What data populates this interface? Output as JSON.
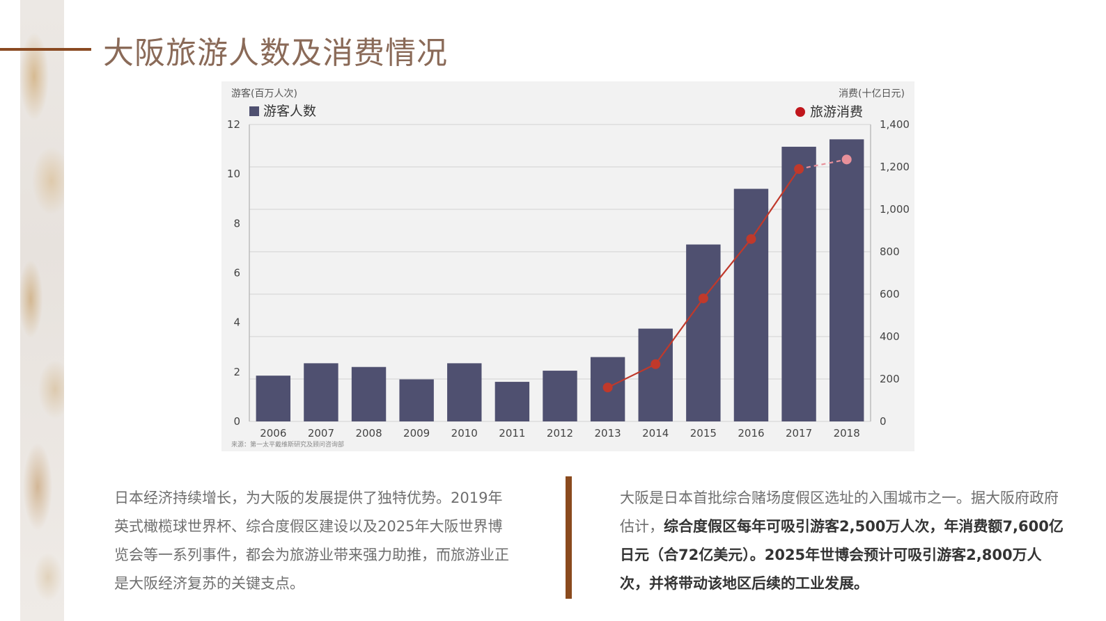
{
  "page": {
    "title": "大阪旅游人数及消费情况"
  },
  "colors": {
    "accent": "#8a4a22",
    "bar": "#4f5070",
    "line": "#c0392b",
    "estimate_point": "#e8909a"
  },
  "chart_data": {
    "type": "bar",
    "left_axis_title": "游客(百万人次)",
    "right_axis_title": "消费(十亿日元)",
    "categories": [
      "2006",
      "2007",
      "2008",
      "2009",
      "2010",
      "2011",
      "2012",
      "2013",
      "2014",
      "2015",
      "2016",
      "2017",
      "2018"
    ],
    "series": [
      {
        "name": "游客人数",
        "type": "bar",
        "axis": "left",
        "values": [
          1.85,
          2.35,
          2.2,
          1.7,
          2.35,
          1.6,
          2.05,
          2.6,
          3.75,
          7.15,
          9.4,
          11.1,
          11.4
        ]
      },
      {
        "name": "旅游消费",
        "type": "line",
        "axis": "right",
        "values": [
          null,
          null,
          null,
          null,
          null,
          null,
          null,
          160,
          270,
          580,
          860,
          1190,
          1235
        ],
        "estimate_from_index": 12
      }
    ],
    "left_ylim": [
      0,
      12
    ],
    "right_ylim": [
      0,
      1400
    ],
    "left_ticks": [
      "0",
      "2",
      "4",
      "6",
      "8",
      "10",
      "12"
    ],
    "right_ticks": [
      "0",
      "200",
      "400",
      "600",
      "800",
      "1,000",
      "1,200",
      "1,400"
    ],
    "source": "来源：第一太平戴维斯研究及顾问咨询部",
    "grid": true,
    "legend": "top"
  },
  "text": {
    "left_paragraph": "日本经济持续增长，为大阪的发展提供了独特优势。2019年英式橄榄球世界杯、综合度假区建设以及2025年大阪世界博览会等一系列事件，都会为旅游业带来强力助推，而旅游业正是大阪经济复苏的关键支点。",
    "right_normal": "大阪是日本首批综合赌场度假区选址的入围城市之一。据大阪府政府估计，",
    "right_bold": "综合度假区每年可吸引游客2,500万人次，年消费额7,600亿日元（合72亿美元）。2025年世博会预计可吸引游客2,800万人次，并将带动该地区后续的工业发展。"
  }
}
